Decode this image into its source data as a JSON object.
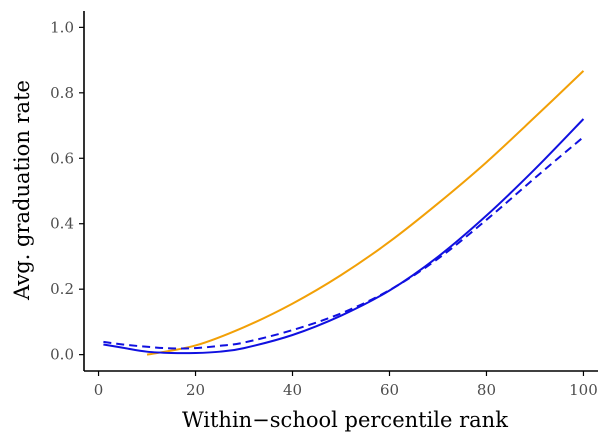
{
  "chart_data": {
    "type": "line",
    "title": "",
    "xlabel": "Within−school percentile rank",
    "ylabel": "Avg. graduation rate",
    "xlim": [
      -3,
      103
    ],
    "ylim": [
      -0.05,
      1.05
    ],
    "x_ticks": [
      0,
      20,
      40,
      60,
      80,
      100
    ],
    "x_tick_labels": [
      "0",
      "20",
      "40",
      "60",
      "80",
      "100"
    ],
    "y_ticks": [
      0.0,
      0.2,
      0.4,
      0.6,
      0.8,
      1.0
    ],
    "y_tick_labels": [
      "0.0",
      "0.2",
      "0.4",
      "0.6",
      "0.8",
      "1.0"
    ],
    "grid": false,
    "legend": "none",
    "series": [
      {
        "color": "#f2a007",
        "dash": "solid",
        "x": [
          10,
          20,
          30,
          40,
          50,
          60,
          70,
          80,
          90,
          100
        ],
        "values": [
          0.0,
          0.028,
          0.084,
          0.156,
          0.243,
          0.345,
          0.462,
          0.588,
          0.726,
          0.867
        ]
      },
      {
        "color": "#1010e0",
        "dash": "solid",
        "x": [
          1,
          5,
          10,
          15,
          20,
          25,
          30,
          40,
          50,
          60,
          70,
          80,
          90,
          100
        ],
        "values": [
          0.031,
          0.021,
          0.009,
          0.005,
          0.005,
          0.009,
          0.02,
          0.06,
          0.119,
          0.196,
          0.299,
          0.425,
          0.567,
          0.72
        ]
      },
      {
        "color": "#1010e0",
        "dash": "dashed",
        "x": [
          1,
          5,
          10,
          15,
          20,
          25,
          30,
          40,
          50,
          60,
          70,
          80,
          90,
          100
        ],
        "values": [
          0.039,
          0.031,
          0.024,
          0.019,
          0.02,
          0.027,
          0.037,
          0.075,
          0.126,
          0.197,
          0.293,
          0.412,
          0.54,
          0.665
        ]
      }
    ]
  }
}
